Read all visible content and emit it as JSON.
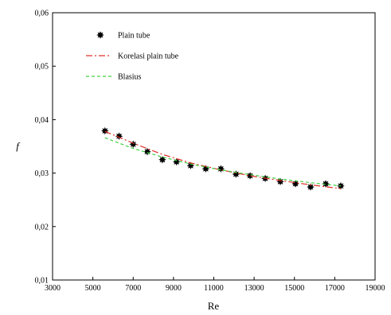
{
  "chart_data": {
    "type": "scatter",
    "xlabel": "Re",
    "ylabel": "f",
    "xlim": [
      3000,
      19000
    ],
    "ylim": [
      0.01,
      0.06
    ],
    "x_ticks": [
      3000,
      5000,
      7000,
      9000,
      11000,
      13000,
      15000,
      17000,
      19000
    ],
    "y_ticks": [
      0.01,
      0.02,
      0.03,
      0.04,
      0.05,
      0.06
    ],
    "x_tick_labels": [
      "3000",
      "5000",
      "7000",
      "9000",
      "11000",
      "13000",
      "15000",
      "17000",
      "19000"
    ],
    "y_tick_labels": [
      "0,01",
      "0,02",
      "0,03",
      "0,04",
      "0,05",
      "0,06"
    ],
    "grid": false,
    "legend_position": "top-left",
    "series": [
      {
        "name": "Plain tube",
        "kind": "markers",
        "color": "#000000",
        "x": [
          5600,
          6300,
          7000,
          7700,
          8450,
          9150,
          9850,
          10600,
          11350,
          12100,
          12800,
          13550,
          14300,
          15050,
          15800,
          16550,
          17300
        ],
        "y": [
          0.0379,
          0.0369,
          0.0354,
          0.034,
          0.0325,
          0.0321,
          0.0314,
          0.0308,
          0.0308,
          0.0298,
          0.0295,
          0.029,
          0.0284,
          0.028,
          0.0274,
          0.028,
          0.0276
        ]
      },
      {
        "name": "Korelasi plain tube",
        "kind": "dash-dot-line",
        "color": "#e0302a",
        "x": [
          5600,
          7000,
          8450,
          9850,
          11350,
          12800,
          14300,
          15800,
          17300
        ],
        "y": [
          0.0378,
          0.0356,
          0.0335,
          0.0319,
          0.0306,
          0.0295,
          0.0286,
          0.0278,
          0.0271
        ]
      },
      {
        "name": "Blasius",
        "kind": "dashed-line",
        "color": "#3fd13f",
        "x": [
          5600,
          7000,
          8450,
          9850,
          11350,
          12800,
          14300,
          15800,
          17300
        ],
        "y": [
          0.0366,
          0.0346,
          0.033,
          0.0317,
          0.0306,
          0.0297,
          0.0289,
          0.0282,
          0.0276
        ]
      }
    ]
  }
}
